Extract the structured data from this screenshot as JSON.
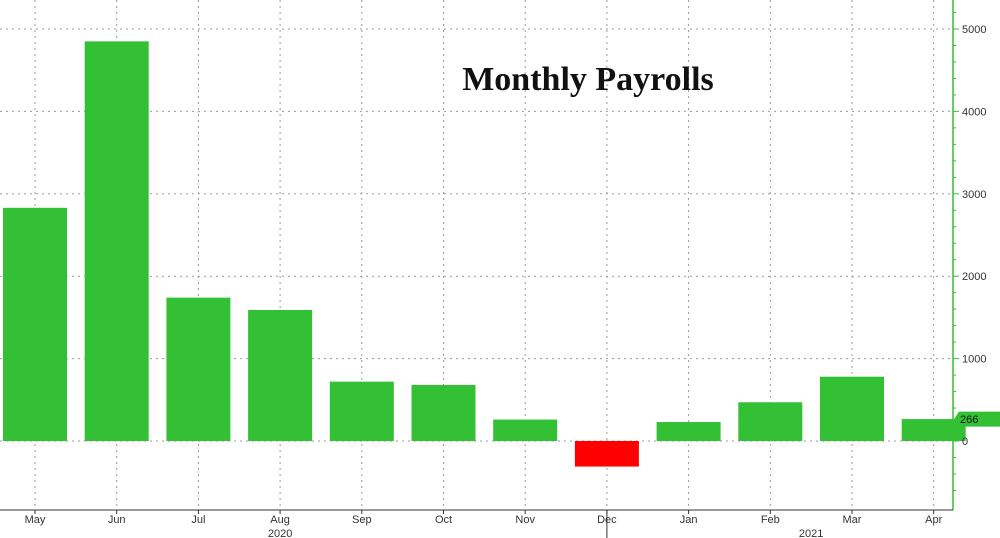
{
  "chart_data": {
    "type": "bar",
    "title": "Monthly Payrolls",
    "categories": [
      "May",
      "Jun",
      "Jul",
      "Aug",
      "Sep",
      "Oct",
      "Nov",
      "Dec",
      "Jan",
      "Feb",
      "Mar",
      "Apr"
    ],
    "values": [
      2830,
      4850,
      1740,
      1590,
      720,
      680,
      260,
      -310,
      230,
      470,
      780,
      266
    ],
    "years": [
      {
        "label": "2020",
        "spans": [
          "May",
          "Nov"
        ]
      },
      {
        "label": "2021",
        "spans": [
          "Jan",
          "Apr"
        ]
      }
    ],
    "ylim": [
      -650,
      5250
    ],
    "yticks": [
      0,
      1000,
      2000,
      3000,
      4000,
      5000
    ],
    "last_value_label": "266",
    "colors": {
      "positive": "#33c035",
      "negative": "#ff0000",
      "axis": "#33c035",
      "grid": "#9a9a9a"
    },
    "grid": true,
    "legend": "none",
    "yaxis_position": "right"
  }
}
